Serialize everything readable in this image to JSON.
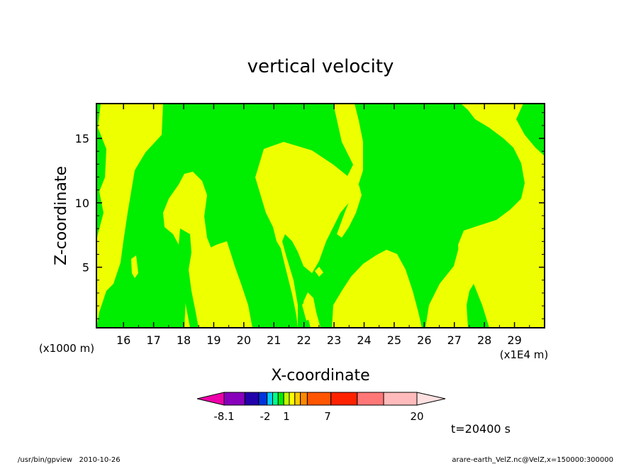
{
  "chart_data": {
    "type": "contour",
    "title": "vertical velocity",
    "xlabel": "X-coordinate",
    "ylabel": "Z-coordinate",
    "x_unit_note": "(x1E4 m)",
    "y_unit_note": "(x1000 m)",
    "xlim": [
      15.1,
      30.0
    ],
    "ylim": [
      0.3,
      17.7
    ],
    "x_ticks": [
      "16",
      "17",
      "18",
      "19",
      "20",
      "21",
      "22",
      "23",
      "24",
      "25",
      "26",
      "27",
      "28",
      "29"
    ],
    "y_ticks": [
      "5",
      "10",
      "15"
    ],
    "time_label": "t=20400 s",
    "colorbar": {
      "tick_labels": [
        "-8.1",
        "-2",
        "1",
        "7",
        "20"
      ],
      "colors": [
        "#ee00aa",
        "#8800bb",
        "#2200aa",
        "#0033dd",
        "#00ccff",
        "#00ff88",
        "#00ee00",
        "#bbff00",
        "#ffff00",
        "#ffcc00",
        "#ff8800",
        "#ff5500",
        "#ff2200",
        "#ff7777",
        "#ffbbbb",
        "#ffe0e0"
      ]
    },
    "fill_colors": {
      "positive": "#eeff00",
      "near_zero": "#00ee00"
    },
    "footer_left": "/usr/bin/gpview   2010-10-26",
    "footer_right": "arare-earth_VelZ.nc@VelZ,x=150000:300000"
  }
}
